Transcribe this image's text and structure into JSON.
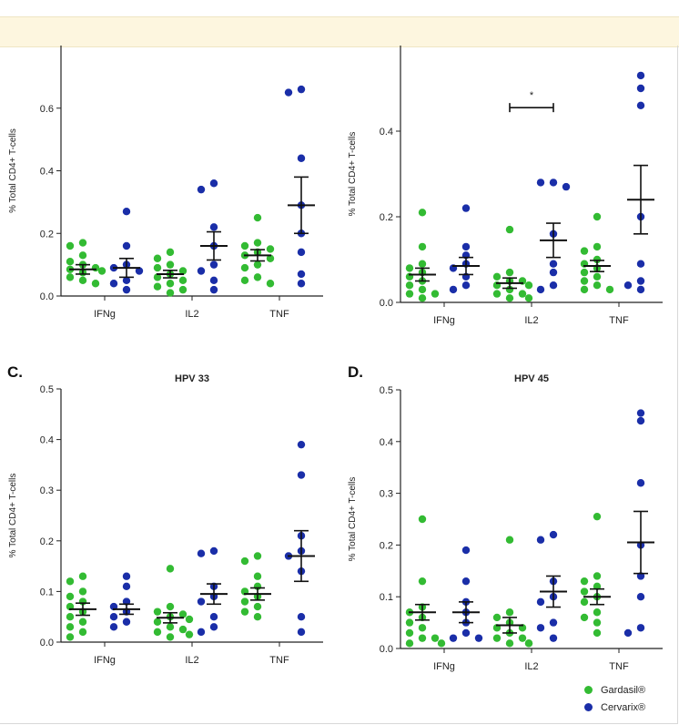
{
  "chart_data": [
    {
      "id": "A",
      "label": "",
      "title": "",
      "type": "scatter",
      "ylabel": "% Total CD4+ T-cells",
      "ylim": [
        0,
        0.8
      ],
      "yticks": [
        0.0,
        0.2,
        0.4,
        0.6
      ],
      "categories": [
        "IFNg",
        "IL2",
        "TNF"
      ],
      "series": [
        {
          "name": "Gardasil®",
          "color": "#33bb33",
          "points": [
            [
              0.17,
              0.16,
              0.13,
              0.11,
              0.1,
              0.09,
              0.085,
              0.08,
              0.075,
              0.06,
              0.05,
              0.04
            ],
            [
              0.14,
              0.12,
              0.1,
              0.09,
              0.08,
              0.07,
              0.06,
              0.05,
              0.04,
              0.03,
              0.02,
              0.01
            ],
            [
              0.25,
              0.17,
              0.16,
              0.15,
              0.14,
              0.13,
              0.12,
              0.1,
              0.09,
              0.06,
              0.05,
              0.04
            ]
          ],
          "mean": [
            0.085,
            0.07,
            0.13
          ],
          "sem": [
            0.015,
            0.012,
            0.018
          ]
        },
        {
          "name": "Cervarix®",
          "color": "#1a2ea8",
          "points": [
            [
              0.27,
              0.16,
              0.1,
              0.09,
              0.08,
              0.05,
              0.04,
              0.02
            ],
            [
              0.36,
              0.34,
              0.22,
              0.16,
              0.1,
              0.08,
              0.05,
              0.02
            ],
            [
              0.66,
              0.65,
              0.44,
              0.29,
              0.2,
              0.14,
              0.07,
              0.04
            ]
          ],
          "mean": [
            0.09,
            0.16,
            0.29
          ],
          "sem": [
            0.03,
            0.045,
            0.09
          ]
        }
      ],
      "significance": []
    },
    {
      "id": "B",
      "label": "",
      "title": "",
      "type": "scatter",
      "ylabel": "% Total CD4+ T-cells",
      "ylim": [
        0,
        0.6
      ],
      "yticks": [
        0.0,
        0.2,
        0.4
      ],
      "categories": [
        "IFNg",
        "IL2",
        "TNF"
      ],
      "series": [
        {
          "name": "Gardasil®",
          "color": "#33bb33",
          "points": [
            [
              0.21,
              0.13,
              0.09,
              0.08,
              0.07,
              0.06,
              0.05,
              0.04,
              0.03,
              0.02,
              0.02,
              0.01
            ],
            [
              0.17,
              0.07,
              0.06,
              0.05,
              0.05,
              0.04,
              0.04,
              0.03,
              0.02,
              0.02,
              0.01,
              0.01
            ],
            [
              0.2,
              0.13,
              0.12,
              0.1,
              0.09,
              0.08,
              0.07,
              0.06,
              0.05,
              0.04,
              0.03,
              0.03
            ]
          ],
          "mean": [
            0.065,
            0.045,
            0.085
          ],
          "sem": [
            0.015,
            0.012,
            0.013
          ]
        },
        {
          "name": "Cervarix®",
          "color": "#1a2ea8",
          "points": [
            [
              0.22,
              0.13,
              0.11,
              0.09,
              0.08,
              0.06,
              0.04,
              0.03
            ],
            [
              0.28,
              0.28,
              0.27,
              0.16,
              0.09,
              0.07,
              0.04,
              0.03
            ],
            [
              0.53,
              0.5,
              0.46,
              0.2,
              0.09,
              0.05,
              0.04,
              0.03
            ]
          ],
          "mean": [
            0.085,
            0.145,
            0.24
          ],
          "sem": [
            0.02,
            0.04,
            0.08
          ]
        }
      ],
      "significance": [
        {
          "category": "IL2",
          "label": "*",
          "y": 0.455
        }
      ]
    },
    {
      "id": "C",
      "label": "C.",
      "title": "HPV 33",
      "type": "scatter",
      "ylabel": "% Total CD4+ T-cells",
      "ylim": [
        0,
        0.5
      ],
      "yticks": [
        0.0,
        0.1,
        0.2,
        0.3,
        0.4,
        0.5
      ],
      "categories": [
        "IFNg",
        "IL2",
        "TNF"
      ],
      "series": [
        {
          "name": "Gardasil®",
          "color": "#33bb33",
          "points": [
            [
              0.13,
              0.12,
              0.1,
              0.09,
              0.08,
              0.07,
              0.06,
              0.05,
              0.04,
              0.03,
              0.02,
              0.01
            ],
            [
              0.145,
              0.07,
              0.06,
              0.055,
              0.05,
              0.045,
              0.04,
              0.03,
              0.025,
              0.02,
              0.015,
              0.01
            ],
            [
              0.17,
              0.16,
              0.13,
              0.11,
              0.1,
              0.09,
              0.08,
              0.07,
              0.06,
              0.05
            ]
          ],
          "mean": [
            0.065,
            0.048,
            0.095
          ],
          "sem": [
            0.012,
            0.01,
            0.012
          ]
        },
        {
          "name": "Cervarix®",
          "color": "#1a2ea8",
          "points": [
            [
              0.13,
              0.11,
              0.08,
              0.07,
              0.06,
              0.05,
              0.04,
              0.03
            ],
            [
              0.18,
              0.175,
              0.11,
              0.09,
              0.08,
              0.05,
              0.03,
              0.02
            ],
            [
              0.39,
              0.33,
              0.21,
              0.18,
              0.17,
              0.14,
              0.05,
              0.02
            ]
          ],
          "mean": [
            0.065,
            0.095,
            0.17
          ],
          "sem": [
            0.01,
            0.02,
            0.05
          ]
        }
      ],
      "significance": []
    },
    {
      "id": "D",
      "label": "D.",
      "title": "HPV 45",
      "type": "scatter",
      "ylabel": "% Total CD4+ T-cells",
      "ylim": [
        0,
        0.5
      ],
      "yticks": [
        0.0,
        0.1,
        0.2,
        0.3,
        0.4,
        0.5
      ],
      "categories": [
        "IFNg",
        "IL2",
        "TNF"
      ],
      "series": [
        {
          "name": "Gardasil®",
          "color": "#33bb33",
          "points": [
            [
              0.25,
              0.13,
              0.08,
              0.07,
              0.06,
              0.05,
              0.04,
              0.03,
              0.02,
              0.02,
              0.01,
              0.01
            ],
            [
              0.21,
              0.07,
              0.06,
              0.05,
              0.04,
              0.04,
              0.03,
              0.02,
              0.02,
              0.01,
              0.01,
              0.01
            ],
            [
              0.255,
              0.14,
              0.13,
              0.12,
              0.11,
              0.1,
              0.09,
              0.07,
              0.06,
              0.05,
              0.03
            ]
          ],
          "mean": [
            0.07,
            0.045,
            0.1
          ],
          "sem": [
            0.015,
            0.015,
            0.015
          ]
        },
        {
          "name": "Cervarix®",
          "color": "#1a2ea8",
          "points": [
            [
              0.19,
              0.13,
              0.09,
              0.07,
              0.05,
              0.03,
              0.02,
              0.02
            ],
            [
              0.22,
              0.21,
              0.13,
              0.1,
              0.09,
              0.05,
              0.04,
              0.02
            ],
            [
              0.455,
              0.44,
              0.32,
              0.2,
              0.14,
              0.1,
              0.04,
              0.03
            ]
          ],
          "mean": [
            0.07,
            0.11,
            0.205
          ],
          "sem": [
            0.02,
            0.03,
            0.06
          ]
        }
      ],
      "significance": []
    }
  ],
  "legend": [
    {
      "label": "Gardasil®",
      "color": "#33bb33"
    },
    {
      "label": "Cervarix®",
      "color": "#1a2ea8"
    }
  ]
}
